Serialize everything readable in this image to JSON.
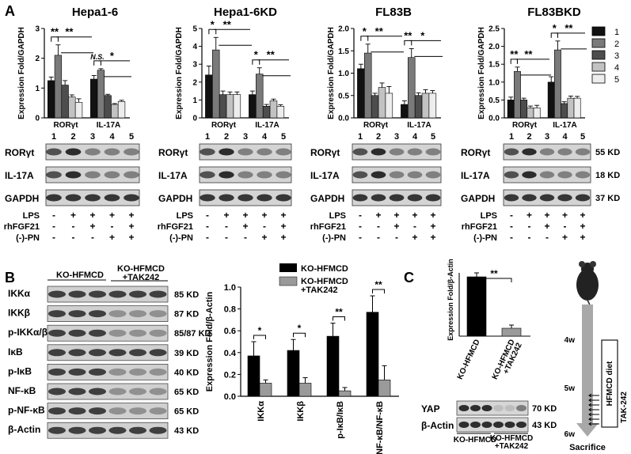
{
  "panel_letters": {
    "a": "A",
    "b": "B",
    "c": "C"
  },
  "panel_a": {
    "y_label": "Expression Fold/GAPDH",
    "legend": [
      "1",
      "2",
      "3",
      "4",
      "5"
    ],
    "legend_colors": [
      "#111111",
      "#7a7a7a",
      "#4d4d4d",
      "#c2c2c2",
      "#ededed"
    ],
    "lane_numbers": [
      "1",
      "2",
      "3",
      "4",
      "5"
    ],
    "blot_rows": [
      "RORγt",
      "IL-17A",
      "GAPDH"
    ],
    "kd_labels": [
      "55 KD",
      "18 KD",
      "37 KD"
    ],
    "treatments": [
      "LPS",
      "rhFGF21",
      "(-)-PN"
    ],
    "treatment_signs": [
      [
        "-",
        "+",
        "+",
        "+",
        "+"
      ],
      [
        "-",
        "-",
        "+",
        "-",
        "+"
      ],
      [
        "-",
        "-",
        "-",
        "+",
        "+"
      ]
    ]
  },
  "chart_data": [
    {
      "type": "bar",
      "title": "Hepa1-6",
      "ylabel": "Expression Fold/GAPDH",
      "ylim": [
        0,
        3
      ],
      "yticks": [
        "0",
        "1",
        "2",
        "3"
      ],
      "categories": [
        "RORγt",
        "IL-17A"
      ],
      "series": [
        {
          "name": "1",
          "values": [
            1.25,
            1.3
          ],
          "err": [
            0.12,
            0.12
          ]
        },
        {
          "name": "2",
          "values": [
            2.1,
            1.6
          ],
          "err": [
            0.35,
            0.05
          ]
        },
        {
          "name": "3",
          "values": [
            1.1,
            0.75
          ],
          "err": [
            0.15,
            0.04
          ]
        },
        {
          "name": "4",
          "values": [
            0.7,
            0.45
          ],
          "err": [
            0.07,
            0.03
          ]
        },
        {
          "name": "5",
          "values": [
            0.52,
            0.55
          ],
          "err": [
            0.12,
            0.04
          ]
        }
      ],
      "significance": [
        {
          "text": "**"
        },
        {
          "text": "**"
        },
        {
          "text": "N.S."
        },
        {
          "text": "*"
        }
      ]
    },
    {
      "type": "bar",
      "title": "Hepa1-6KD",
      "ylabel": "Expression Fold/GAPDH",
      "ylim": [
        0,
        5
      ],
      "yticks": [
        "0",
        "1",
        "2",
        "3",
        "4",
        "5"
      ],
      "categories": [
        "RORγt",
        "IL-17A"
      ],
      "series": [
        {
          "name": "1",
          "values": [
            2.4,
            1.3
          ],
          "err": [
            0.5,
            0.2
          ]
        },
        {
          "name": "2",
          "values": [
            3.8,
            2.45
          ],
          "err": [
            0.7,
            0.35
          ]
        },
        {
          "name": "3",
          "values": [
            1.3,
            0.65
          ],
          "err": [
            0.2,
            0.1
          ]
        },
        {
          "name": "4",
          "values": [
            1.3,
            0.95
          ],
          "err": [
            0.15,
            0.1
          ]
        },
        {
          "name": "5",
          "values": [
            1.3,
            0.65
          ],
          "err": [
            0.15,
            0.08
          ]
        }
      ],
      "significance": [
        {
          "text": "*"
        },
        {
          "text": "**"
        },
        {
          "text": "*"
        },
        {
          "text": "**"
        }
      ]
    },
    {
      "type": "bar",
      "title": "FL83B",
      "ylabel": "Expression Fold/GAPDH",
      "ylim": [
        0,
        2.0
      ],
      "yticks": [
        "0.0",
        "0.5",
        "1.0",
        "1.5",
        "2.0"
      ],
      "categories": [
        "RORγt",
        "IL-17A"
      ],
      "series": [
        {
          "name": "1",
          "values": [
            1.1,
            0.3
          ],
          "err": [
            0.1,
            0.08
          ]
        },
        {
          "name": "2",
          "values": [
            1.45,
            1.35
          ],
          "err": [
            0.2,
            0.2
          ]
        },
        {
          "name": "3",
          "values": [
            0.5,
            0.5
          ],
          "err": [
            0.05,
            0.06
          ]
        },
        {
          "name": "4",
          "values": [
            0.68,
            0.55
          ],
          "err": [
            0.1,
            0.08
          ]
        },
        {
          "name": "5",
          "values": [
            0.55,
            0.55
          ],
          "err": [
            0.15,
            0.06
          ]
        }
      ],
      "significance": [
        {
          "text": "*"
        },
        {
          "text": "**"
        },
        {
          "text": "**"
        },
        {
          "text": "*"
        }
      ]
    },
    {
      "type": "bar",
      "title": "FL83BKD",
      "ylabel": "Expression Fold/GAPDH",
      "ylim": [
        0,
        2.5
      ],
      "yticks": [
        "0.0",
        "0.5",
        "1.0",
        "1.5",
        "2.0",
        "2.5"
      ],
      "categories": [
        "RORγt",
        "IL-17A"
      ],
      "series": [
        {
          "name": "1",
          "values": [
            0.5,
            1.0
          ],
          "err": [
            0.08,
            0.15
          ]
        },
        {
          "name": "2",
          "values": [
            1.3,
            1.9
          ],
          "err": [
            0.12,
            0.25
          ]
        },
        {
          "name": "3",
          "values": [
            0.5,
            0.4
          ],
          "err": [
            0.05,
            0.05
          ]
        },
        {
          "name": "4",
          "values": [
            0.28,
            0.55
          ],
          "err": [
            0.05,
            0.06
          ]
        },
        {
          "name": "5",
          "values": [
            0.28,
            0.55
          ],
          "err": [
            0.07,
            0.05
          ]
        }
      ],
      "significance": [
        {
          "text": "**"
        },
        {
          "text": "**"
        },
        {
          "text": "*"
        },
        {
          "text": "**"
        }
      ]
    },
    {
      "type": "bar",
      "title": "",
      "ylabel": "Expression Fold/β-Actin",
      "ylim": [
        0,
        1.0
      ],
      "yticks": [
        "0.0",
        "0.2",
        "0.4",
        "0.6",
        "0.8",
        "1.0"
      ],
      "categories": [
        "IKKα",
        "IKKβ",
        "p-IκB/IκB",
        "p-NF-κB/NF-κB"
      ],
      "legend": [
        "KO-HFMCD",
        "KO-HFMCD\n+TAK242"
      ],
      "series": [
        {
          "name": "KO-HFMCD",
          "color": "#000000",
          "values": [
            0.37,
            0.42,
            0.55,
            0.77
          ],
          "err": [
            0.13,
            0.1,
            0.12,
            0.15
          ]
        },
        {
          "name": "KO-HFMCD +TAK242",
          "color": "#9a9a9a",
          "values": [
            0.12,
            0.12,
            0.05,
            0.15
          ],
          "err": [
            0.03,
            0.05,
            0.03,
            0.13
          ]
        }
      ],
      "significance": [
        "*",
        "*",
        "**",
        "**"
      ]
    },
    {
      "type": "bar",
      "title": "",
      "ylabel": "Expression Fold/β-Actin",
      "ylim": [
        0,
        0.8
      ],
      "categories": [
        "KO-HFMCD",
        "KO-HFMCD\n+TAK242"
      ],
      "values": [
        0.75,
        0.1
      ],
      "err": [
        0.05,
        0.04
      ],
      "colors": [
        "#000000",
        "#9a9a9a"
      ],
      "significance": [
        "**"
      ]
    }
  ],
  "panel_b": {
    "groups": [
      "KO-HFMCD",
      "KO-HFMCD\n+TAK242"
    ],
    "rows": [
      {
        "label": "IKKα",
        "kd": "85 KD"
      },
      {
        "label": "IKKβ",
        "kd": "87 KD"
      },
      {
        "label": "p-IKKα/β",
        "kd": "85/87 KD"
      },
      {
        "label": "IκB",
        "kd": "39 KD"
      },
      {
        "label": "p-IκB",
        "kd": "40 KD"
      },
      {
        "label": "NF-κB",
        "kd": "65 KD"
      },
      {
        "label": "p-NF-κB",
        "kd": "65 KD"
      },
      {
        "label": "β-Actin",
        "kd": "43 KD"
      }
    ]
  },
  "panel_c": {
    "blot_rows": [
      {
        "label": "YAP",
        "kd": "70 KD"
      },
      {
        "label": "β-Actin",
        "kd": "43 KD"
      }
    ],
    "groups": [
      "KO-HFMCD",
      "KO-HFMCD\n+TAK242"
    ],
    "timeline": {
      "weeks": [
        "4w",
        "5w",
        "6w"
      ],
      "end": "Sacrifice",
      "diet": "HFMCD diet",
      "drug": "TAK-242"
    }
  }
}
